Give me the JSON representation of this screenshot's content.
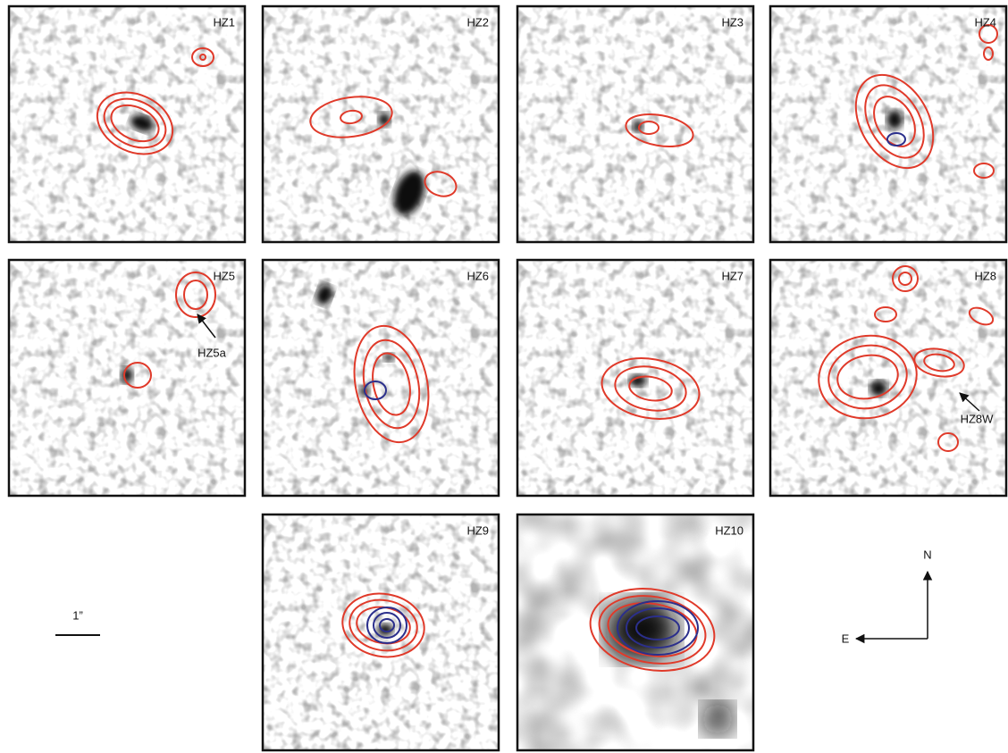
{
  "panels": [
    {
      "label": "HZ1"
    },
    {
      "label": "HZ2"
    },
    {
      "label": "HZ3"
    },
    {
      "label": "HZ4"
    },
    {
      "label": "HZ5"
    },
    {
      "label": "HZ6"
    },
    {
      "label": "HZ7"
    },
    {
      "label": "HZ8"
    },
    {
      "label": "HZ9"
    },
    {
      "label": "HZ10"
    }
  ],
  "annotations": [
    {
      "text": "HZ5a"
    },
    {
      "text": "HZ8W"
    }
  ],
  "scale_bar": {
    "label": "1”"
  },
  "compass": {
    "north": "N",
    "east": "E"
  }
}
